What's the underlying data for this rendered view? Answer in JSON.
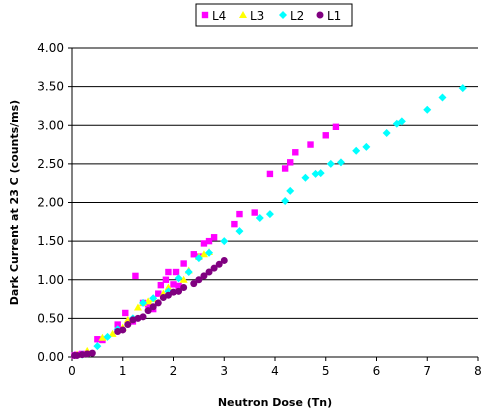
{
  "chart_data": {
    "type": "scatter",
    "title": "",
    "xlabel": "Neutron Dose (Tn)",
    "ylabel": "Dark Current at 23 C (counts/ms)",
    "xlim": [
      0,
      8
    ],
    "ylim": [
      0,
      4
    ],
    "x_ticks": [
      "0",
      "1",
      "2",
      "3",
      "4",
      "5",
      "6",
      "7",
      "8"
    ],
    "y_ticks": [
      "0.00",
      "0.50",
      "1.00",
      "1.50",
      "2.00",
      "2.50",
      "3.00",
      "3.50",
      "4.00"
    ],
    "grid": "horizontal",
    "legend_position": "top",
    "series": [
      {
        "name": "L4",
        "marker": "square",
        "color": "#ff00ff",
        "points": [
          [
            0.05,
            0.02
          ],
          [
            0.1,
            0.03
          ],
          [
            0.2,
            0.04
          ],
          [
            0.5,
            0.23
          ],
          [
            0.6,
            0.22
          ],
          [
            0.9,
            0.42
          ],
          [
            1.05,
            0.57
          ],
          [
            1.2,
            0.46
          ],
          [
            1.25,
            1.05
          ],
          [
            1.4,
            0.7
          ],
          [
            1.5,
            0.68
          ],
          [
            1.6,
            0.62
          ],
          [
            1.7,
            0.82
          ],
          [
            1.75,
            0.93
          ],
          [
            1.85,
            1.0
          ],
          [
            1.9,
            1.1
          ],
          [
            2.0,
            0.94
          ],
          [
            2.05,
            1.1
          ],
          [
            2.1,
            0.92
          ],
          [
            2.2,
            1.21
          ],
          [
            2.4,
            1.33
          ],
          [
            2.5,
            1.3
          ],
          [
            2.6,
            1.47
          ],
          [
            2.7,
            1.5
          ],
          [
            2.8,
            1.55
          ],
          [
            3.2,
            1.72
          ],
          [
            3.3,
            1.85
          ],
          [
            3.6,
            1.87
          ],
          [
            3.9,
            2.37
          ],
          [
            4.2,
            2.44
          ],
          [
            4.3,
            2.52
          ],
          [
            4.4,
            2.65
          ],
          [
            4.7,
            2.75
          ],
          [
            5.0,
            2.87
          ],
          [
            5.2,
            2.98
          ]
        ]
      },
      {
        "name": "L3",
        "marker": "triangle",
        "color": "#ffff00",
        "points": [
          [
            0.1,
            0.03
          ],
          [
            0.3,
            0.08
          ],
          [
            0.6,
            0.25
          ],
          [
            0.8,
            0.3
          ],
          [
            1.0,
            0.38
          ],
          [
            1.1,
            0.48
          ],
          [
            1.3,
            0.64
          ],
          [
            1.4,
            0.7
          ],
          [
            1.5,
            0.72
          ],
          [
            1.6,
            0.75
          ],
          [
            1.8,
            0.82
          ],
          [
            1.9,
            0.9
          ],
          [
            2.2,
            1.0
          ],
          [
            2.3,
            1.12
          ],
          [
            2.5,
            1.3
          ],
          [
            2.6,
            1.33
          ],
          [
            2.7,
            1.36
          ]
        ]
      },
      {
        "name": "L2",
        "marker": "diamond",
        "color": "#00ffff",
        "points": [
          [
            0.2,
            0.03
          ],
          [
            0.5,
            0.14
          ],
          [
            0.7,
            0.26
          ],
          [
            0.9,
            0.36
          ],
          [
            1.2,
            0.5
          ],
          [
            1.4,
            0.7
          ],
          [
            1.6,
            0.76
          ],
          [
            1.9,
            0.85
          ],
          [
            2.1,
            1.02
          ],
          [
            2.3,
            1.1
          ],
          [
            2.5,
            1.28
          ],
          [
            2.7,
            1.35
          ],
          [
            3.0,
            1.5
          ],
          [
            3.3,
            1.63
          ],
          [
            3.7,
            1.8
          ],
          [
            3.9,
            1.85
          ],
          [
            4.2,
            2.02
          ],
          [
            4.3,
            2.15
          ],
          [
            4.6,
            2.32
          ],
          [
            4.8,
            2.37
          ],
          [
            4.9,
            2.38
          ],
          [
            5.1,
            2.5
          ],
          [
            5.3,
            2.52
          ],
          [
            5.6,
            2.67
          ],
          [
            5.8,
            2.72
          ],
          [
            6.2,
            2.9
          ],
          [
            6.4,
            3.02
          ],
          [
            6.5,
            3.05
          ],
          [
            7.0,
            3.2
          ],
          [
            7.3,
            3.36
          ],
          [
            7.7,
            3.48
          ]
        ]
      },
      {
        "name": "L1",
        "marker": "circle",
        "color": "#800080",
        "points": [
          [
            0.05,
            0.02
          ],
          [
            0.1,
            0.02
          ],
          [
            0.2,
            0.03
          ],
          [
            0.3,
            0.04
          ],
          [
            0.4,
            0.05
          ],
          [
            0.9,
            0.33
          ],
          [
            1.0,
            0.35
          ],
          [
            1.1,
            0.42
          ],
          [
            1.2,
            0.48
          ],
          [
            1.3,
            0.5
          ],
          [
            1.4,
            0.52
          ],
          [
            1.5,
            0.6
          ],
          [
            1.6,
            0.65
          ],
          [
            1.7,
            0.7
          ],
          [
            1.8,
            0.77
          ],
          [
            1.9,
            0.8
          ],
          [
            2.0,
            0.84
          ],
          [
            2.1,
            0.85
          ],
          [
            2.2,
            0.9
          ],
          [
            2.4,
            0.95
          ],
          [
            2.5,
            1.0
          ],
          [
            2.6,
            1.05
          ],
          [
            2.7,
            1.1
          ],
          [
            2.8,
            1.15
          ],
          [
            2.9,
            1.2
          ],
          [
            3.0,
            1.25
          ]
        ]
      }
    ]
  }
}
